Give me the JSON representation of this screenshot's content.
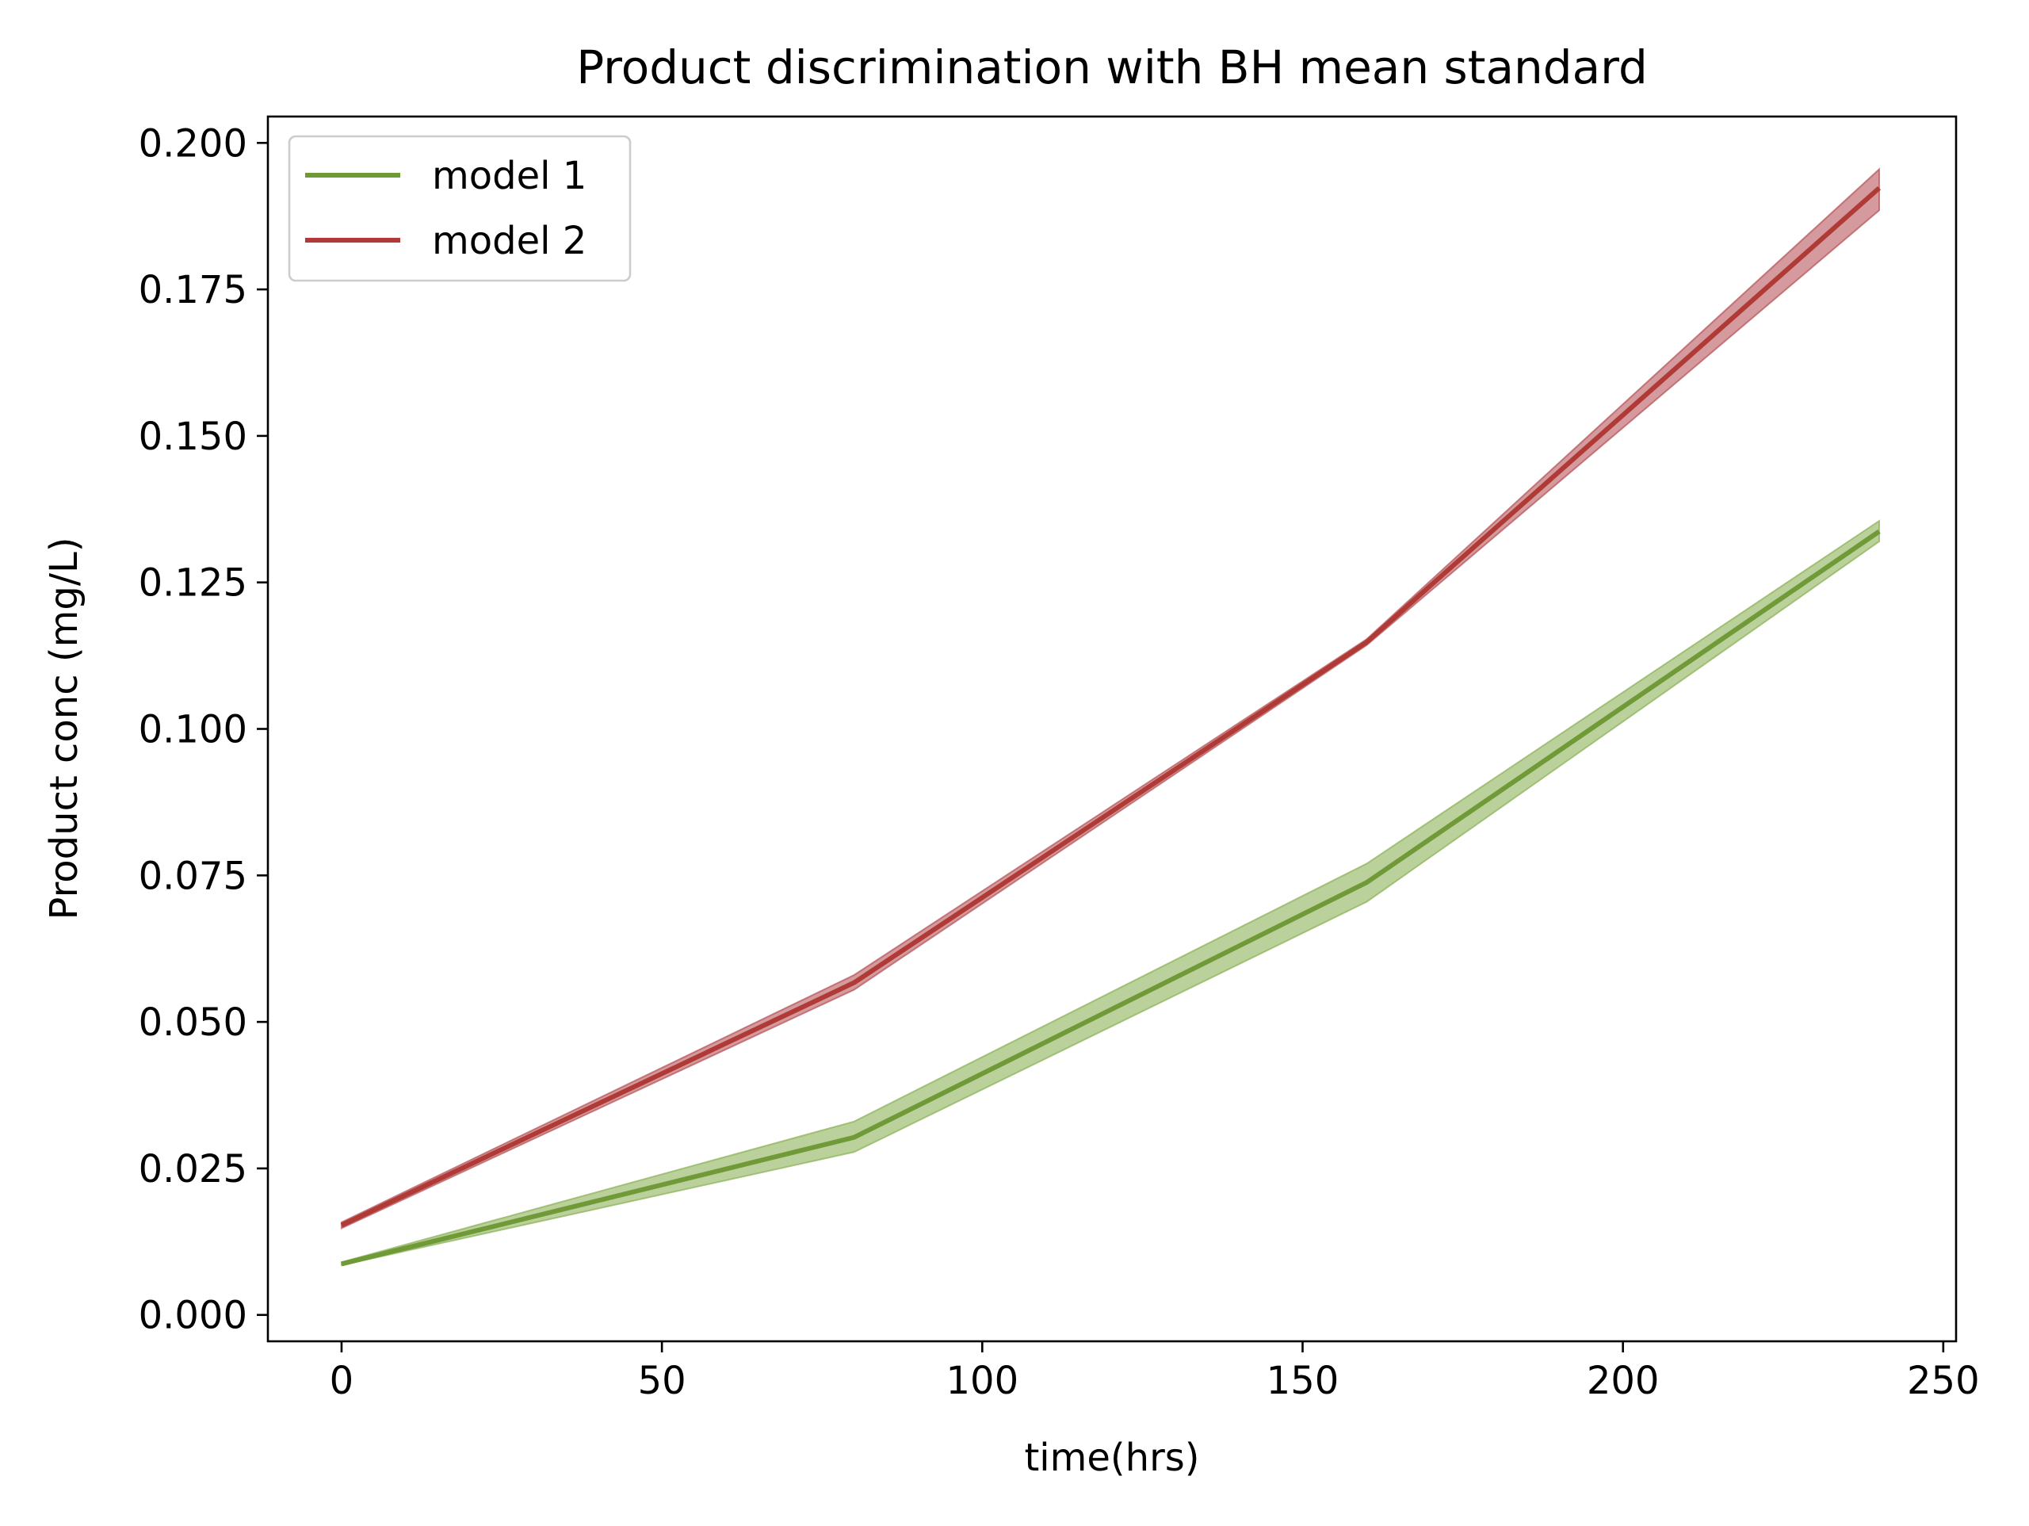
{
  "chart_data": {
    "type": "line",
    "title": "Product discrimination with BH mean standard",
    "xlabel": "time(hrs)",
    "ylabel": "Product conc (mg/L)",
    "xlim": [
      -11.5,
      252
    ],
    "ylim": [
      -0.0045,
      0.2045
    ],
    "xticks": [
      0,
      50,
      100,
      150,
      200,
      250
    ],
    "xtick_labels": [
      "0",
      "50",
      "100",
      "150",
      "200",
      "250"
    ],
    "yticks": [
      0.0,
      0.025,
      0.05,
      0.075,
      0.1,
      0.125,
      0.15,
      0.175,
      0.2
    ],
    "ytick_labels": [
      "0.000",
      "0.025",
      "0.050",
      "0.075",
      "0.100",
      "0.125",
      "0.150",
      "0.175",
      "0.200"
    ],
    "grid": false,
    "legend_position": "upper-left",
    "x": [
      0,
      80,
      160,
      240
    ],
    "series": [
      {
        "name": "model 1",
        "color": "#6f9a37",
        "fill_color": "#8db35a",
        "values": [
          0.0087,
          0.0303,
          0.0738,
          0.1337
        ],
        "lower": [
          0.0085,
          0.0278,
          0.0705,
          0.132
        ],
        "upper": [
          0.009,
          0.033,
          0.077,
          0.1355
        ]
      },
      {
        "name": "model 2",
        "color": "#b03a35",
        "fill_color": "#b8575b",
        "values": [
          0.0153,
          0.0567,
          0.1148,
          0.1923
        ],
        "lower": [
          0.0148,
          0.0555,
          0.1143,
          0.1885
        ],
        "upper": [
          0.0158,
          0.058,
          0.1153,
          0.1955
        ]
      }
    ]
  }
}
